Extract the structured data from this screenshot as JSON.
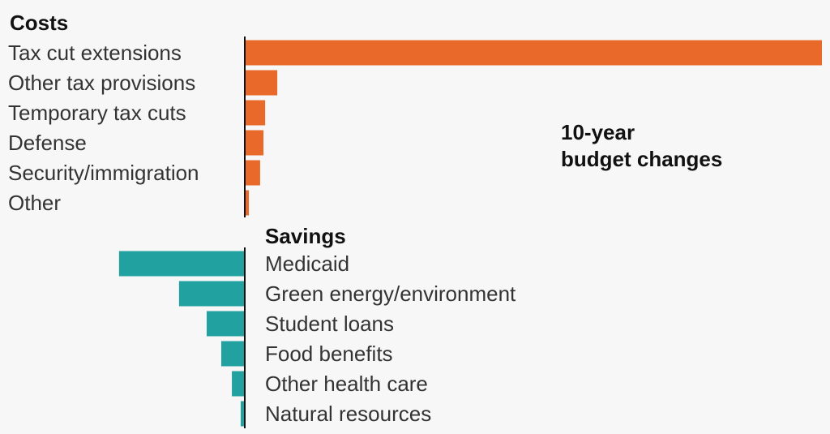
{
  "chart_data": {
    "type": "bar",
    "orientation": "horizontal",
    "annotation": [
      "10-year",
      "budget changes"
    ],
    "colors": {
      "costs": "#e8692a",
      "savings": "#21a1a0",
      "axis": "#111111"
    },
    "groups": [
      {
        "title": "Costs",
        "categories": [
          "Tax cut extensions",
          "Other tax provisions",
          "Temporary tax cuts",
          "Defense",
          "Security/immigration",
          "Other"
        ],
        "values": [
          3800,
          214,
          134,
          123,
          101,
          27
        ]
      },
      {
        "title": "Savings",
        "categories": [
          "Medicaid",
          "Green energy/environment",
          "Student loans",
          "Food benefits",
          "Other health care",
          "Natural resources"
        ],
        "values": [
          -828,
          -433,
          -251,
          -155,
          -85,
          -27
        ]
      }
    ]
  }
}
